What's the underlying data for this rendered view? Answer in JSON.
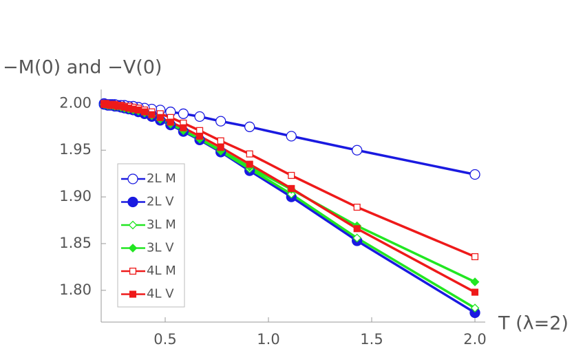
{
  "chart_data": {
    "type": "line",
    "title": "−M(0) and −V(0)",
    "x_label": "T (λ=2)",
    "x": [
      2.0,
      1.429,
      1.111,
      0.909,
      0.769,
      0.667,
      0.588,
      0.526,
      0.476,
      0.435,
      0.4,
      0.37,
      0.345,
      0.323,
      0.303,
      0.286,
      0.27,
      0.256,
      0.244,
      0.233,
      0.222,
      0.213,
      0.204
    ],
    "series": [
      {
        "name": "2L M",
        "color": "#1a1ae0",
        "marker": "circle",
        "filled": false,
        "values": [
          1.924,
          1.95,
          1.965,
          1.975,
          1.981,
          1.986,
          1.989,
          1.991,
          1.993,
          1.994,
          1.995,
          1.996,
          1.997,
          1.997,
          1.998,
          1.998,
          1.998,
          1.999,
          1.999,
          1.999,
          1.999,
          1.999,
          2.0
        ]
      },
      {
        "name": "2L V",
        "color": "#1a1ae0",
        "marker": "circle",
        "filled": true,
        "values": [
          1.776,
          1.853,
          1.9,
          1.928,
          1.948,
          1.961,
          1.97,
          1.977,
          1.982,
          1.986,
          1.989,
          1.991,
          1.993,
          1.994,
          1.995,
          1.996,
          1.997,
          1.997,
          1.998,
          1.998,
          1.998,
          1.999,
          1.999
        ]
      },
      {
        "name": "3L M",
        "color": "#22e622",
        "marker": "diamond",
        "filled": false,
        "values": [
          1.781,
          1.856,
          1.903,
          1.93,
          1.949,
          1.962,
          1.971,
          1.978,
          1.983,
          1.987,
          1.99,
          1.992,
          1.993,
          1.994,
          1.995,
          1.996,
          1.997,
          1.997,
          1.998,
          1.998,
          1.998,
          1.999,
          1.999
        ]
      },
      {
        "name": "3L V",
        "color": "#22e622",
        "marker": "diamond",
        "filled": true,
        "values": [
          1.809,
          1.869,
          1.908,
          1.932,
          1.95,
          1.962,
          1.971,
          1.978,
          1.983,
          1.987,
          1.99,
          1.992,
          1.993,
          1.994,
          1.995,
          1.996,
          1.997,
          1.997,
          1.998,
          1.998,
          1.998,
          1.999,
          1.999
        ]
      },
      {
        "name": "4L M",
        "color": "#ee1a1a",
        "marker": "square",
        "filled": false,
        "values": [
          1.836,
          1.889,
          1.923,
          1.946,
          1.96,
          1.971,
          1.979,
          1.985,
          1.989,
          1.991,
          1.993,
          1.995,
          1.996,
          1.997,
          1.997,
          1.998,
          1.998,
          1.999,
          1.999,
          1.999,
          1.999,
          2.0,
          2.0
        ]
      },
      {
        "name": "4L V",
        "color": "#ee1a1a",
        "marker": "square",
        "filled": true,
        "values": [
          1.798,
          1.866,
          1.909,
          1.935,
          1.953,
          1.965,
          1.974,
          1.98,
          1.985,
          1.988,
          1.991,
          1.993,
          1.994,
          1.995,
          1.996,
          1.997,
          1.997,
          1.998,
          1.998,
          1.998,
          1.999,
          1.999,
          1.999
        ]
      }
    ],
    "xlim": [
      0.19,
      2.05
    ],
    "ylim": [
      1.766,
      2.015
    ],
    "xticks": [
      0.5,
      {
        "value": 1.0,
        "label": "1.0"
      },
      1.5,
      {
        "value": 2.0,
        "label": "2.0"
      }
    ],
    "yticks": [
      {
        "value": 1.8,
        "label": "1.80"
      },
      1.85,
      {
        "value": 1.9,
        "label": "1.90"
      },
      1.95,
      {
        "value": 2.0,
        "label": "2.00"
      }
    ],
    "legend": "lower left"
  }
}
